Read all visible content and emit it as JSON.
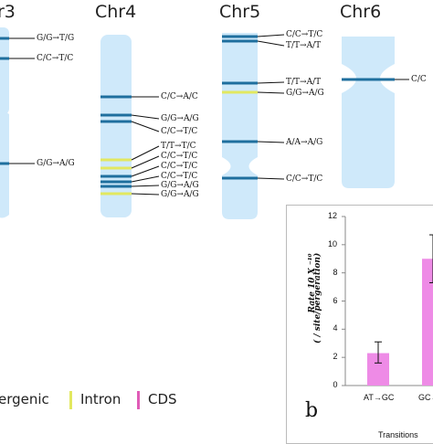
{
  "chromosomes": [
    {
      "name": "r3"
    },
    {
      "name": "Chr4"
    },
    {
      "name": "Chr5"
    },
    {
      "name": "Chr6"
    }
  ],
  "mutations": {
    "chr3": [
      "G/G→T/G",
      "C/C→T/C",
      "G/G→A/G"
    ],
    "chr4": [
      "C/C→A/C",
      "G/G→A/G",
      "C/C→T/C",
      "T/T→T/C",
      "C/C→T/C",
      "C/C→T/C",
      "C/C→T/C",
      "G/G→A/G",
      "G/G→A/G"
    ],
    "chr5": [
      "C/C→T/C",
      "T/T→A/T",
      "T/T→A/T",
      "G/G→A/G",
      "A/A→A/G",
      "C/C→T/C"
    ],
    "chr6": [
      "C/C"
    ]
  },
  "legend": {
    "items": [
      {
        "label": "ergenic",
        "color": "#1f6f9e"
      },
      {
        "label": "Intron",
        "color": "#e2e860"
      },
      {
        "label": "CDS",
        "color": "#e05cb7"
      }
    ]
  },
  "colors": {
    "chromosome": "#cfe9fa",
    "intergenic": "#1f6f9e",
    "intron": "#e2e860",
    "cds": "#e05cb7",
    "bar": "#ee8be6"
  },
  "inset": {
    "panel_letter": "b",
    "y_label_line1": "Rate 10 X ⁻¹⁰",
    "y_label_line2": "( / site/pergeration)",
    "x_title": "Transitions",
    "y_ticks": [
      "0",
      "2",
      "4",
      "6",
      "8",
      "10",
      "12"
    ],
    "chart_data": {
      "type": "bar",
      "categories": [
        "AT→GC",
        "GC→"
      ],
      "values": [
        2.3,
        9.0
      ],
      "error_low": [
        1.6,
        7.3
      ],
      "error_high": [
        3.1,
        10.7
      ],
      "ylim": [
        0,
        12
      ],
      "xlabel": "Transitions",
      "ylabel": "Rate 10 X ⁻¹⁰ ( / site/pergeration)"
    }
  }
}
